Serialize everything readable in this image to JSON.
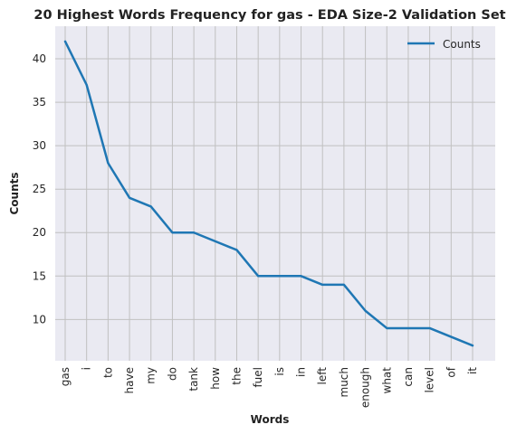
{
  "chart_data": {
    "type": "line",
    "title": "20 Highest Words Frequency for gas - EDA Size-2 Validation Set",
    "xlabel": "Words",
    "ylabel": "Counts",
    "categories": [
      "gas",
      "i",
      "to",
      "have",
      "my",
      "do",
      "tank",
      "how",
      "the",
      "fuel",
      "is",
      "in",
      "left",
      "much",
      "enough",
      "what",
      "can",
      "level",
      "of",
      "it"
    ],
    "series": [
      {
        "name": "Counts",
        "color": "#1f77b4",
        "values": [
          42,
          37,
          28,
          24,
          23,
          20,
          20,
          19,
          18,
          15,
          15,
          15,
          14,
          14,
          11,
          9,
          9,
          9,
          8,
          7
        ]
      }
    ],
    "yticks": [
      10,
      15,
      20,
      25,
      30,
      35,
      40
    ],
    "ylim": [
      5.25,
      43.75
    ],
    "grid": true,
    "legend": "top-right",
    "background": "#eaeaf2",
    "gridColor": "#c0c0c0"
  }
}
